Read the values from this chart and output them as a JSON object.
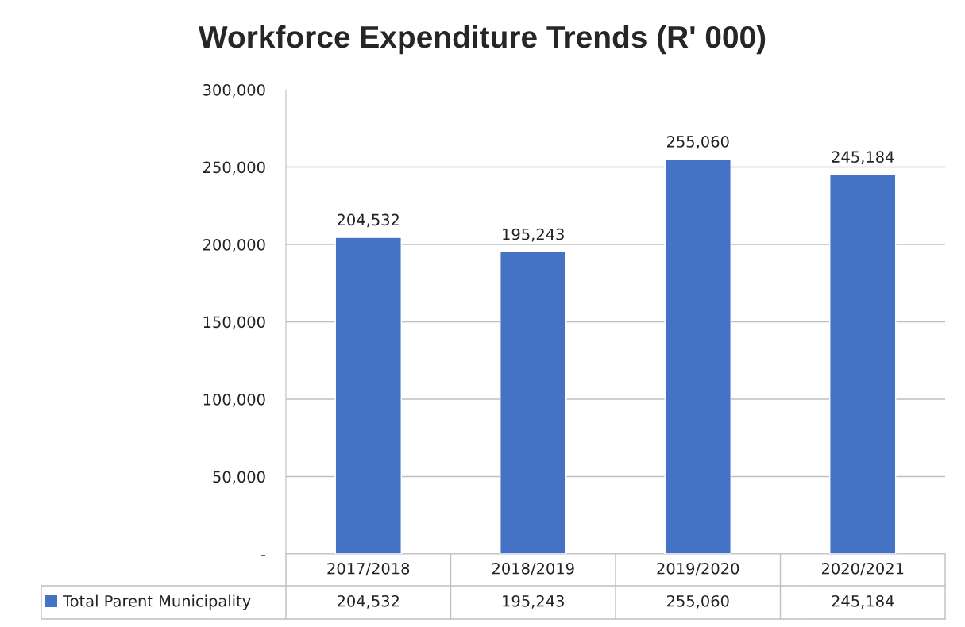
{
  "chart_data": {
    "type": "bar",
    "title": "Workforce Expenditure Trends (R' 000)",
    "categories": [
      "2017/2018",
      "2018/2019",
      "2019/2020",
      "2020/2021"
    ],
    "series": [
      {
        "name": "Total Parent Municipality",
        "color": "#4472c4",
        "values": [
          204532,
          195243,
          255060,
          245184
        ],
        "value_labels": [
          "204,532",
          "195,243",
          "255,060",
          "245,184"
        ]
      }
    ],
    "ylim": [
      0,
      300000
    ],
    "yticks": [
      {
        "value": 0,
        "label": "-"
      },
      {
        "value": 50000,
        "label": "50,000"
      },
      {
        "value": 100000,
        "label": "100,000"
      },
      {
        "value": 150000,
        "label": "150,000"
      },
      {
        "value": 200000,
        "label": "200,000"
      },
      {
        "value": 250000,
        "label": "250,000"
      },
      {
        "value": 300000,
        "label": "300,000"
      }
    ],
    "grid": "y",
    "legend": "bottom"
  }
}
